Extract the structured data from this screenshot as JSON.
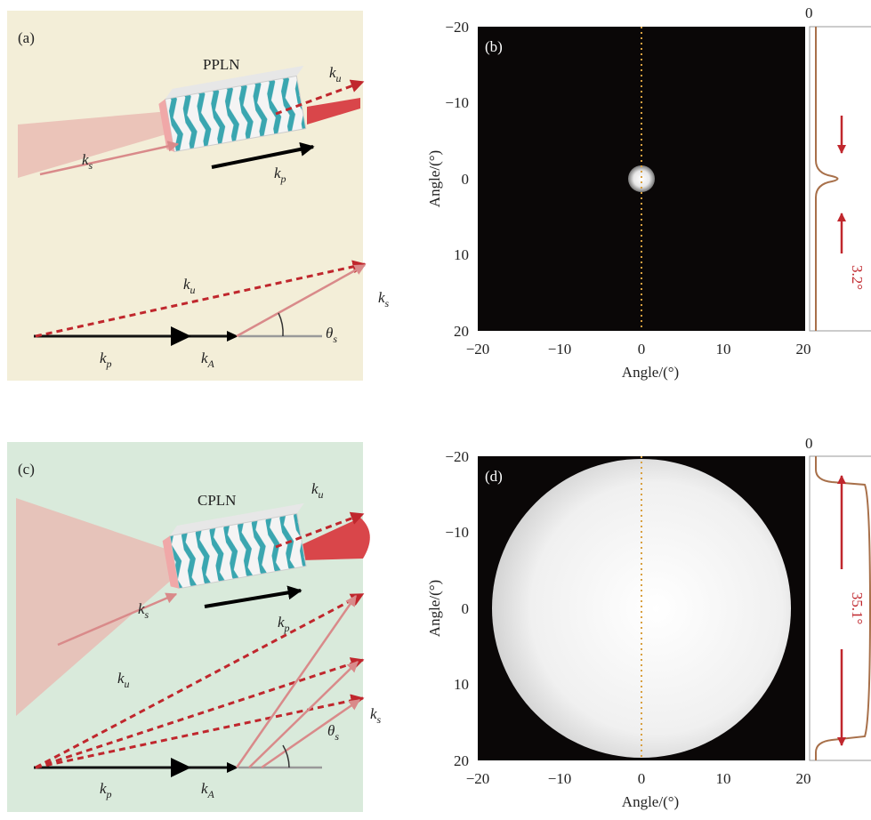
{
  "panel_a": {
    "label": "(a)",
    "crystal": "PPLN",
    "labels": [
      {
        "main": "k",
        "sub": "u"
      },
      {
        "main": "k",
        "sub": "s"
      },
      {
        "main": "k",
        "sub": "p"
      },
      {
        "main": "k",
        "sub": "u"
      },
      {
        "main": "k",
        "sub": "s"
      },
      {
        "main": "θ",
        "sub": "s"
      },
      {
        "main": "k",
        "sub": "p"
      },
      {
        "main": "k",
        "sub": "A"
      }
    ]
  },
  "panel_b": {
    "label": "(b)",
    "x_axis_label": "Angle/(°)",
    "y_axis_label": "Angle/(°)",
    "xticks": [
      "−20",
      "−10",
      "0",
      "10",
      "20"
    ],
    "yticks": [
      "−20",
      "−10",
      "0",
      "10",
      "20"
    ],
    "profile_zero": "0",
    "width_label": "3.2°"
  },
  "panel_c": {
    "label": "(c)",
    "crystal": "CPLN",
    "labels": [
      {
        "main": "k",
        "sub": "u"
      },
      {
        "main": "k",
        "sub": "s"
      },
      {
        "main": "k",
        "sub": "p"
      },
      {
        "main": "k",
        "sub": "u"
      },
      {
        "main": "k",
        "sub": "s"
      },
      {
        "main": "θ",
        "sub": "s"
      },
      {
        "main": "k",
        "sub": "p"
      },
      {
        "main": "k",
        "sub": "A"
      }
    ]
  },
  "panel_d": {
    "label": "(d)",
    "x_axis_label": "Angle/(°)",
    "y_axis_label": "Angle/(°)",
    "xticks": [
      "−20",
      "−10",
      "0",
      "10",
      "20"
    ],
    "yticks": [
      "−20",
      "−10",
      "0",
      "10",
      "20"
    ],
    "profile_zero": "0",
    "width_label": "35.1°"
  }
}
